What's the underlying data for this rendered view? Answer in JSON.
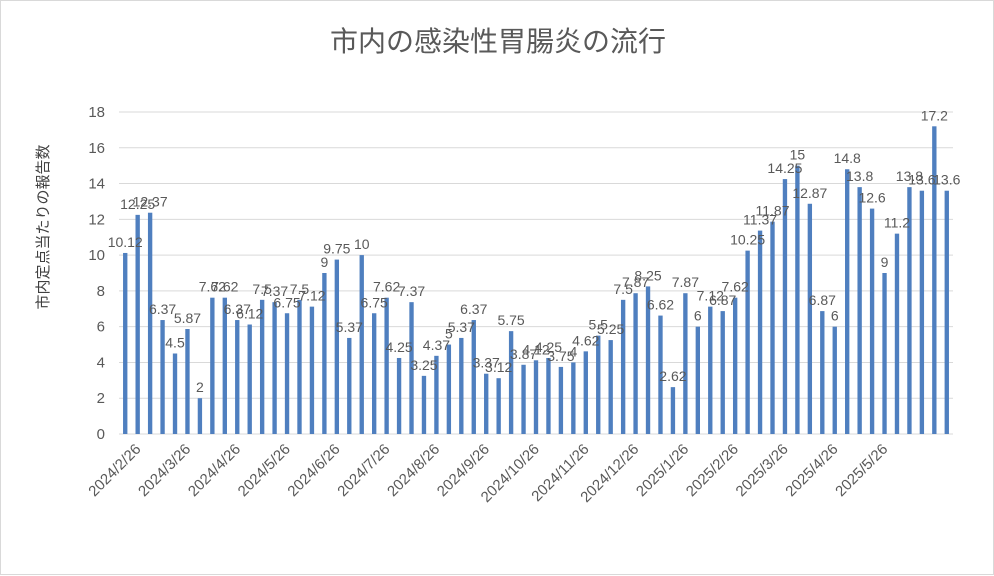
{
  "chart_data": {
    "type": "bar",
    "title": "市内の感染性胃腸炎の流行",
    "ylabel": "市内定点当たりの報告数",
    "xlabel": "",
    "ylim": [
      0,
      18
    ],
    "yticks": [
      0,
      2,
      4,
      6,
      8,
      10,
      12,
      14,
      16,
      18
    ],
    "grid": true,
    "legend": "none",
    "bar_color": "#4f7fbf",
    "x_tick_labels": [
      "2024/2/26",
      "2024/3/26",
      "2024/4/26",
      "2024/5/26",
      "2024/6/26",
      "2024/7/26",
      "2024/8/26",
      "2024/9/26",
      "2024/10/26",
      "2024/11/26",
      "2024/12/26",
      "2025/1/26",
      "2025/2/26",
      "2025/3/26",
      "2025/4/26",
      "2025/5/26"
    ],
    "values": [
      10.12,
      12.25,
      12.37,
      6.37,
      4.5,
      5.87,
      2,
      7.62,
      7.62,
      6.37,
      6.12,
      7.5,
      7.37,
      6.75,
      7.5,
      7.12,
      9,
      9.75,
      5.37,
      10,
      6.75,
      7.62,
      4.25,
      7.37,
      3.25,
      4.37,
      5,
      5.37,
      6.37,
      3.37,
      3.12,
      5.75,
      3.87,
      4.12,
      4.25,
      3.75,
      4,
      4.62,
      5.5,
      5.25,
      7.5,
      7.87,
      8.25,
      6.62,
      2.62,
      7.87,
      6,
      7.12,
      6.87,
      7.62,
      10.25,
      11.37,
      11.87,
      14.25,
      15,
      12.87,
      6.87,
      6,
      14.8,
      13.8,
      12.6,
      9,
      11.2,
      13.8,
      13.6,
      17.2,
      13.6
    ],
    "data_labels": [
      "10.12",
      "12.25",
      "12.37",
      "6.37",
      "4.5",
      "5.87",
      "2",
      "7.62",
      "7.62",
      "6.37",
      "6.12",
      "7.5",
      "7.37",
      "6.75",
      "7.5",
      "7.12",
      "9",
      "9.75",
      "5.37",
      "10",
      "6.75",
      "7.62",
      "4.25",
      "7.37",
      "3.25",
      "4.37",
      "5",
      "5.37",
      "6.37",
      "3.37",
      "3.12",
      "5.75",
      "3.87",
      "4.12",
      "4.25",
      "3.75",
      "4",
      "4.62",
      "5.5",
      "5.25",
      "7.5",
      "7.87",
      "8.25",
      "6.62",
      "2.62",
      "7.87",
      "6",
      "7.12",
      "6.87",
      "7.62",
      "10.25",
      "11.37",
      "11.87",
      "14.25",
      "15",
      "12.87",
      "6.87",
      "6",
      "14.8",
      "13.8",
      "12.6",
      "9",
      "11.2",
      "13.8",
      "13.6",
      "17.2",
      "13.6"
    ]
  }
}
